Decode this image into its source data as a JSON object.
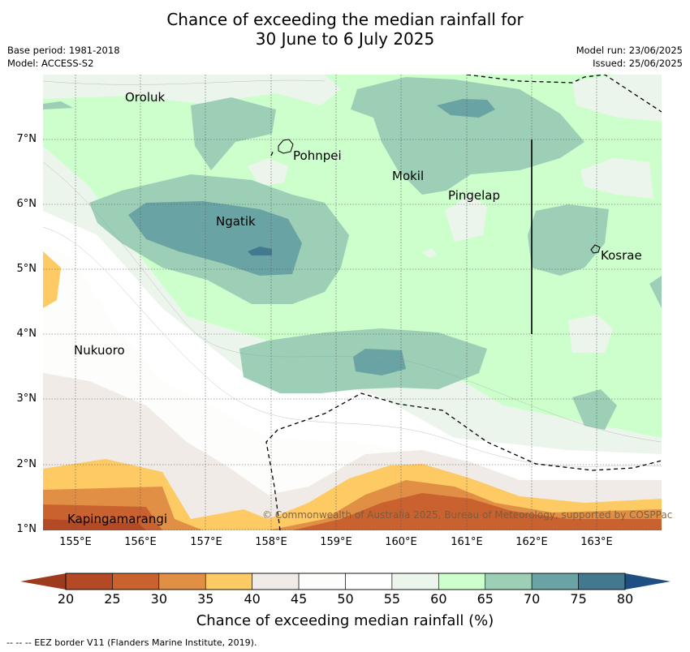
{
  "title_line1": "Chance of exceeding the median rainfall for",
  "title_line2": "30 June to 6 July 2025",
  "meta_left": [
    "Base period: 1981-2018",
    "Model: ACCESS-S2"
  ],
  "meta_right": [
    "Model run: 23/06/2025",
    "Issued: 25/06/2025"
  ],
  "lon_labels": [
    "155°E",
    "156°E",
    "157°E",
    "158°E",
    "159°E",
    "160°E",
    "161°E",
    "162°E",
    "163°E"
  ],
  "lat_labels": [
    "7°N",
    "6°N",
    "5°N",
    "4°N",
    "3°N",
    "2°N",
    "1°N"
  ],
  "places": [
    "Oroluk",
    "Pohnpei",
    "Mokil",
    "Pingelap",
    "Ngatik",
    "Kosrae",
    "Nukuoro",
    "Kapingamarangi"
  ],
  "copyright": "© Commonwealth of Australia 2025, Bureau of Meteorology, supported by COSPPac",
  "colorbar": {
    "ticks": [
      "20",
      "25",
      "30",
      "35",
      "40",
      "45",
      "50",
      "55",
      "60",
      "65",
      "70",
      "75",
      "80"
    ],
    "colors": [
      "#b34a25",
      "#c9622f",
      "#e08f45",
      "#fdca63",
      "#f0ebe6",
      "#fdfefc",
      "#ffffff",
      "#ecf5ec",
      "#ccffcc",
      "#9ccfb6",
      "#6aa3a4",
      "#43798f"
    ],
    "under_color": "#9e3b1c",
    "over_color": "#1f4e82",
    "label": "Chance of exceeding median rainfall (%)"
  },
  "footnote": "--  --  -- EEZ border V11 (Flanders Marine Institute, 2019)."
}
